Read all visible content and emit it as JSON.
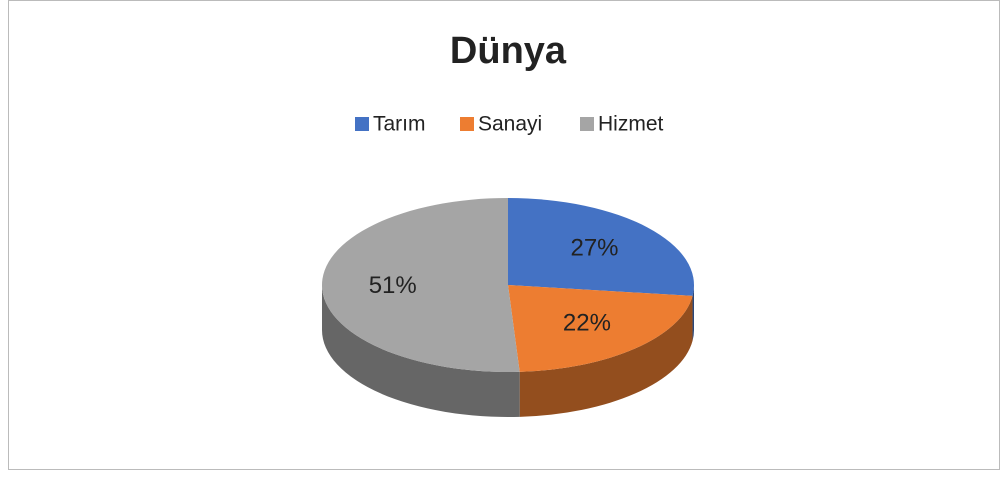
{
  "chart_data": {
    "type": "pie",
    "title": "Dünya",
    "categories": [
      "Tarım",
      "Sanayi",
      "Hizmet"
    ],
    "values": [
      27,
      22,
      51
    ],
    "value_labels": [
      "27%",
      "22%",
      "51%"
    ],
    "colors": [
      "#4472c4",
      "#ed7d31",
      "#a5a5a5"
    ],
    "legend": "top"
  }
}
